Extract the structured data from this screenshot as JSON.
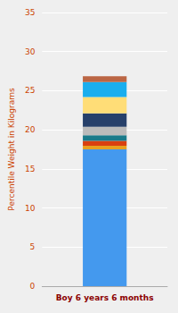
{
  "chart_data": {
    "type": "bar",
    "categories": [
      "Boy 6 years 6 months"
    ],
    "series": [
      {
        "color": "#4499EE",
        "values": [
          17.5
        ]
      },
      {
        "color": "#E8A020",
        "values": [
          0.45
        ]
      },
      {
        "color": "#D94010",
        "values": [
          0.65
        ]
      },
      {
        "color": "#1A7A8A",
        "values": [
          0.7
        ]
      },
      {
        "color": "#BBBBBB",
        "values": [
          1.1
        ]
      },
      {
        "color": "#27406A",
        "values": [
          1.7
        ]
      },
      {
        "color": "#FFDD77",
        "values": [
          2.1
        ]
      },
      {
        "color": "#1AAEEE",
        "values": [
          1.9
        ]
      },
      {
        "color": "#BB6644",
        "values": [
          0.75
        ]
      }
    ],
    "stacked": true,
    "ylabel": "Percentile Weight in Kilograms",
    "ylim": [
      0,
      35
    ],
    "yticks": [
      0,
      5,
      10,
      15,
      20,
      25,
      30,
      35
    ],
    "grid": true
  }
}
